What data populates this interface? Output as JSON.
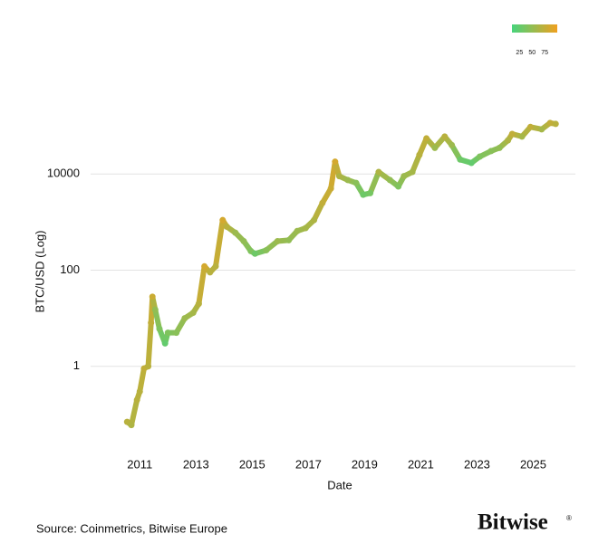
{
  "chart_data": {
    "type": "scatter",
    "ylabel": "BTC/USD (Log)",
    "xlabel": "Date",
    "source": "Source: Coinmetrics, Bitwise Europe",
    "brand": "Bitwise",
    "brand_mark": "®",
    "log_scale": true,
    "grid": true,
    "xlim": [
      2009.25,
      2026.5
    ],
    "xticks": [
      2011,
      2013,
      2015,
      2017,
      2019,
      2021,
      2023,
      2025
    ],
    "ylim": [
      0.02,
      1000000
    ],
    "yticks": [
      1,
      100,
      10000
    ],
    "clim": [
      10,
      100
    ],
    "cticks": [
      25,
      50,
      75
    ],
    "colors": [
      "#47d47c",
      "#f0a01f"
    ],
    "x": [
      2010.55,
      2010.7,
      2010.9,
      2011.0,
      2011.15,
      2011.3,
      2011.4,
      2011.45,
      2011.55,
      2011.7,
      2011.9,
      2012.0,
      2012.3,
      2012.6,
      2012.9,
      2013.1,
      2013.3,
      2013.5,
      2013.7,
      2013.95,
      2014.1,
      2014.4,
      2014.7,
      2014.95,
      2015.1,
      2015.5,
      2015.9,
      2016.3,
      2016.6,
      2016.9,
      2017.2,
      2017.5,
      2017.8,
      2017.95,
      2018.1,
      2018.4,
      2018.7,
      2018.95,
      2019.2,
      2019.5,
      2019.9,
      2020.2,
      2020.4,
      2020.7,
      2020.95,
      2021.2,
      2021.5,
      2021.85,
      2022.1,
      2022.4,
      2022.8,
      2023.1,
      2023.5,
      2023.8,
      2024.1,
      2024.25,
      2024.6,
      2024.9,
      2025.3,
      2025.6,
      2025.8
    ],
    "values": [
      0.07,
      0.06,
      0.2,
      0.3,
      0.9,
      1,
      8,
      28,
      15,
      6,
      3,
      5,
      5,
      10,
      13,
      20,
      120,
      90,
      120,
      1100,
      800,
      600,
      400,
      250,
      220,
      260,
      400,
      420,
      650,
      750,
      1100,
      2500,
      5000,
      18000,
      9000,
      7500,
      6500,
      3700,
      4000,
      11000,
      7500,
      5500,
      9000,
      11000,
      25000,
      55000,
      35000,
      60000,
      40000,
      20000,
      17000,
      23000,
      30000,
      35000,
      50000,
      68000,
      60000,
      95000,
      85000,
      115000,
      110000
    ],
    "color_index": [
      70,
      65,
      70,
      70,
      75,
      70,
      75,
      80,
      50,
      40,
      25,
      40,
      45,
      55,
      60,
      70,
      85,
      70,
      70,
      85,
      70,
      55,
      50,
      40,
      30,
      45,
      55,
      50,
      55,
      60,
      65,
      75,
      80,
      85,
      65,
      55,
      45,
      30,
      35,
      65,
      50,
      40,
      55,
      60,
      70,
      75,
      55,
      70,
      55,
      30,
      25,
      40,
      45,
      50,
      65,
      75,
      60,
      75,
      60,
      75,
      70
    ]
  }
}
